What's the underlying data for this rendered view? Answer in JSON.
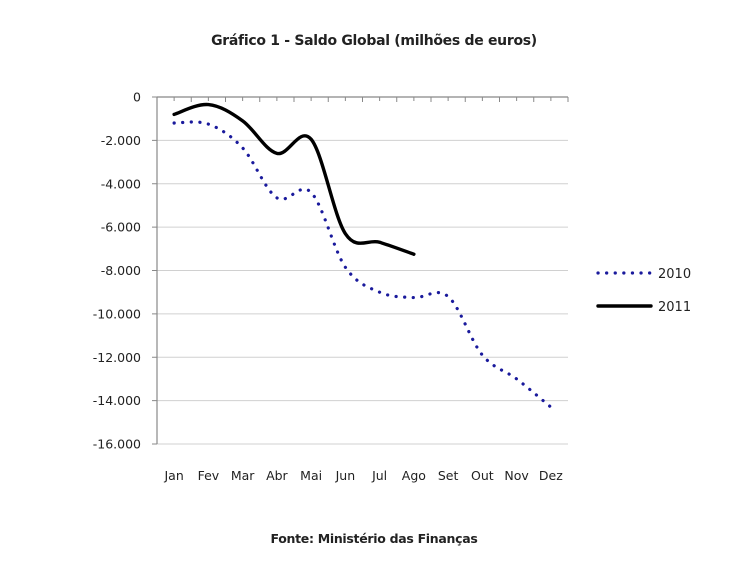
{
  "title": "Gráfico 1 - Saldo Global (milhões de euros)",
  "source": "Fonte: Ministério das Finanças",
  "colors": {
    "series_2010": "#1a1a9c",
    "series_2011": "#000000",
    "grid": "#d0d0d0",
    "axis": "#888888"
  },
  "chart_data": {
    "type": "line",
    "title": "Gráfico 1 - Saldo Global (milhões de euros)",
    "xlabel": "",
    "ylabel": "",
    "categories": [
      "Jan",
      "Fev",
      "Mar",
      "Abr",
      "Mai",
      "Jun",
      "Jul",
      "Ago",
      "Set",
      "Out",
      "Nov",
      "Dez"
    ],
    "ylim": [
      -16000,
      0
    ],
    "yticks": [
      0,
      -2000,
      -4000,
      -6000,
      -8000,
      -10000,
      -12000,
      -14000,
      -16000
    ],
    "ytick_labels": [
      "0",
      "-2.000",
      "-4.000",
      "-6.000",
      "-8.000",
      "-10.000",
      "-12.000",
      "-14.000",
      "-16.000"
    ],
    "grid": true,
    "legend_position": "right",
    "series": [
      {
        "name": "2010",
        "style": "dotted",
        "values": [
          -1200,
          -1250,
          -2350,
          -4650,
          -4400,
          -7850,
          -9000,
          -9250,
          -9200,
          -11900,
          -13000,
          -14300
        ]
      },
      {
        "name": "2011",
        "style": "solid",
        "values": [
          -800,
          -350,
          -1100,
          -2600,
          -1950,
          -6300,
          -6700,
          -7250
        ]
      }
    ],
    "source": "Fonte: Ministério das Finanças"
  },
  "legend": {
    "items": [
      {
        "label": "2010"
      },
      {
        "label": "2011"
      }
    ]
  }
}
